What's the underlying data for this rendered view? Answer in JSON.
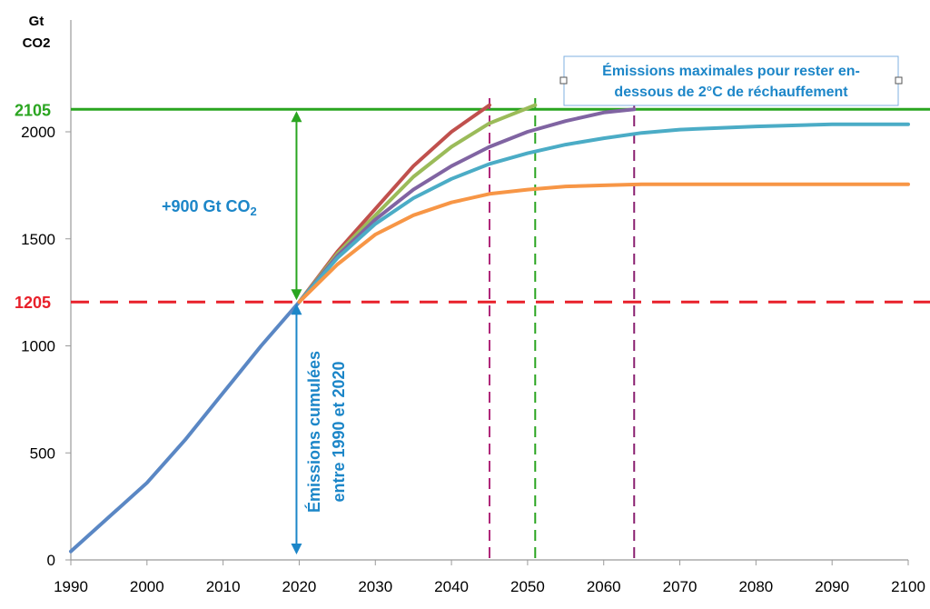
{
  "chart_data": {
    "type": "line",
    "ylabel": [
      "Gt",
      "CO2"
    ],
    "xlim": [
      1990,
      2100
    ],
    "ylim": [
      0,
      2105
    ],
    "x_ticks": [
      1990,
      2000,
      2010,
      2020,
      2030,
      2040,
      2050,
      2060,
      2070,
      2080,
      2090,
      2100
    ],
    "y_ticks": [
      0,
      500,
      1000,
      1500,
      2000
    ],
    "reference_lines": [
      {
        "label": "2105",
        "value": 2105,
        "color": "#2aa520",
        "style": "solid"
      },
      {
        "label": "1205",
        "value": 1205,
        "color": "#e8202a",
        "style": "dashed"
      }
    ],
    "vertical_markers": [
      {
        "x": 2045,
        "color": "#b0287a"
      },
      {
        "x": 2051,
        "color": "#2aa520"
      },
      {
        "x": 2064,
        "color": "#8a2070"
      }
    ],
    "annotations": {
      "increment": "+900 Gt CO",
      "increment_sub": "2",
      "cumulative_line1": "Émissions cumulées",
      "cumulative_line2": "entre 1990 et 2020",
      "box_line1": "Émissions maximales pour rester en-",
      "box_line2": "dessous de 2°C de réchauffement"
    },
    "series": [
      {
        "color": "#5a87c4",
        "x": [
          1990,
          1995,
          2000,
          2005,
          2010,
          2015,
          2020
        ],
        "y": [
          40,
          200,
          360,
          560,
          780,
          1000,
          1205
        ]
      },
      {
        "color": "#c0504d",
        "x": [
          2020,
          2025,
          2030,
          2035,
          2040,
          2045
        ],
        "y": [
          1205,
          1440,
          1640,
          1840,
          2000,
          2125
        ]
      },
      {
        "color": "#9bbb59",
        "x": [
          2020,
          2025,
          2030,
          2035,
          2040,
          2045,
          2051
        ],
        "y": [
          1205,
          1430,
          1610,
          1790,
          1930,
          2040,
          2125
        ]
      },
      {
        "color": "#8064a2",
        "x": [
          2020,
          2025,
          2030,
          2035,
          2040,
          2045,
          2050,
          2055,
          2060,
          2064
        ],
        "y": [
          1205,
          1420,
          1590,
          1730,
          1840,
          1930,
          2000,
          2050,
          2090,
          2105
        ]
      },
      {
        "color": "#4bacc6",
        "x": [
          2020,
          2025,
          2030,
          2035,
          2040,
          2045,
          2050,
          2055,
          2060,
          2065,
          2070,
          2080,
          2090,
          2100
        ],
        "y": [
          1205,
          1410,
          1570,
          1690,
          1780,
          1850,
          1900,
          1940,
          1970,
          1995,
          2010,
          2025,
          2035,
          2035
        ]
      },
      {
        "color": "#f79646",
        "x": [
          2020,
          2025,
          2030,
          2035,
          2040,
          2045,
          2050,
          2055,
          2060,
          2065,
          2070,
          2080,
          2090,
          2100
        ],
        "y": [
          1205,
          1380,
          1520,
          1610,
          1670,
          1710,
          1730,
          1745,
          1750,
          1755,
          1755,
          1755,
          1755,
          1755
        ]
      }
    ]
  }
}
